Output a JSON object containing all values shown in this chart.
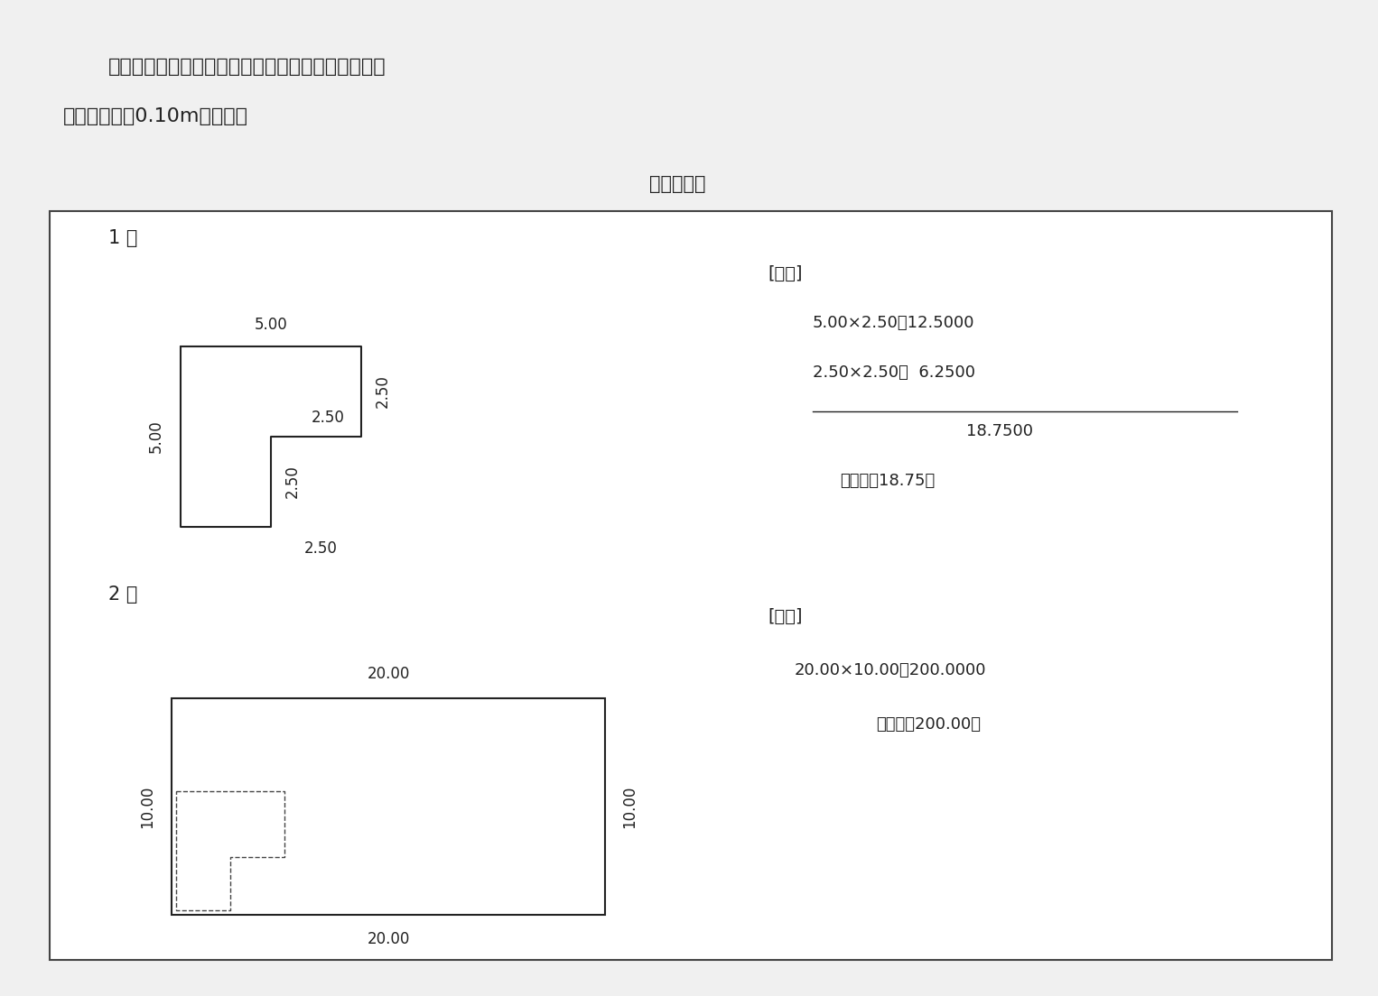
{
  "bg_color": "#f0f0f0",
  "panel_bg": "#ffffff",
  "title_text": "２階の区分建物の各階平面図は，次のようになる。",
  "subtitle_text": "ただし壁厚を0.10mとする。",
  "section_title": "各階平面図",
  "floor1_label": "1 階",
  "floor2_label": "2 階",
  "calc1_lines": [
    "[求積]",
    "5.00×2.50＝12.5000",
    "2.50×2.50＝  6.2500",
    "18.7500",
    "床面積　18.75㎡"
  ],
  "calc2_lines": [
    "[求積]",
    "20.00×10.00＝200.0000",
    "床面積　200.00㎡"
  ]
}
